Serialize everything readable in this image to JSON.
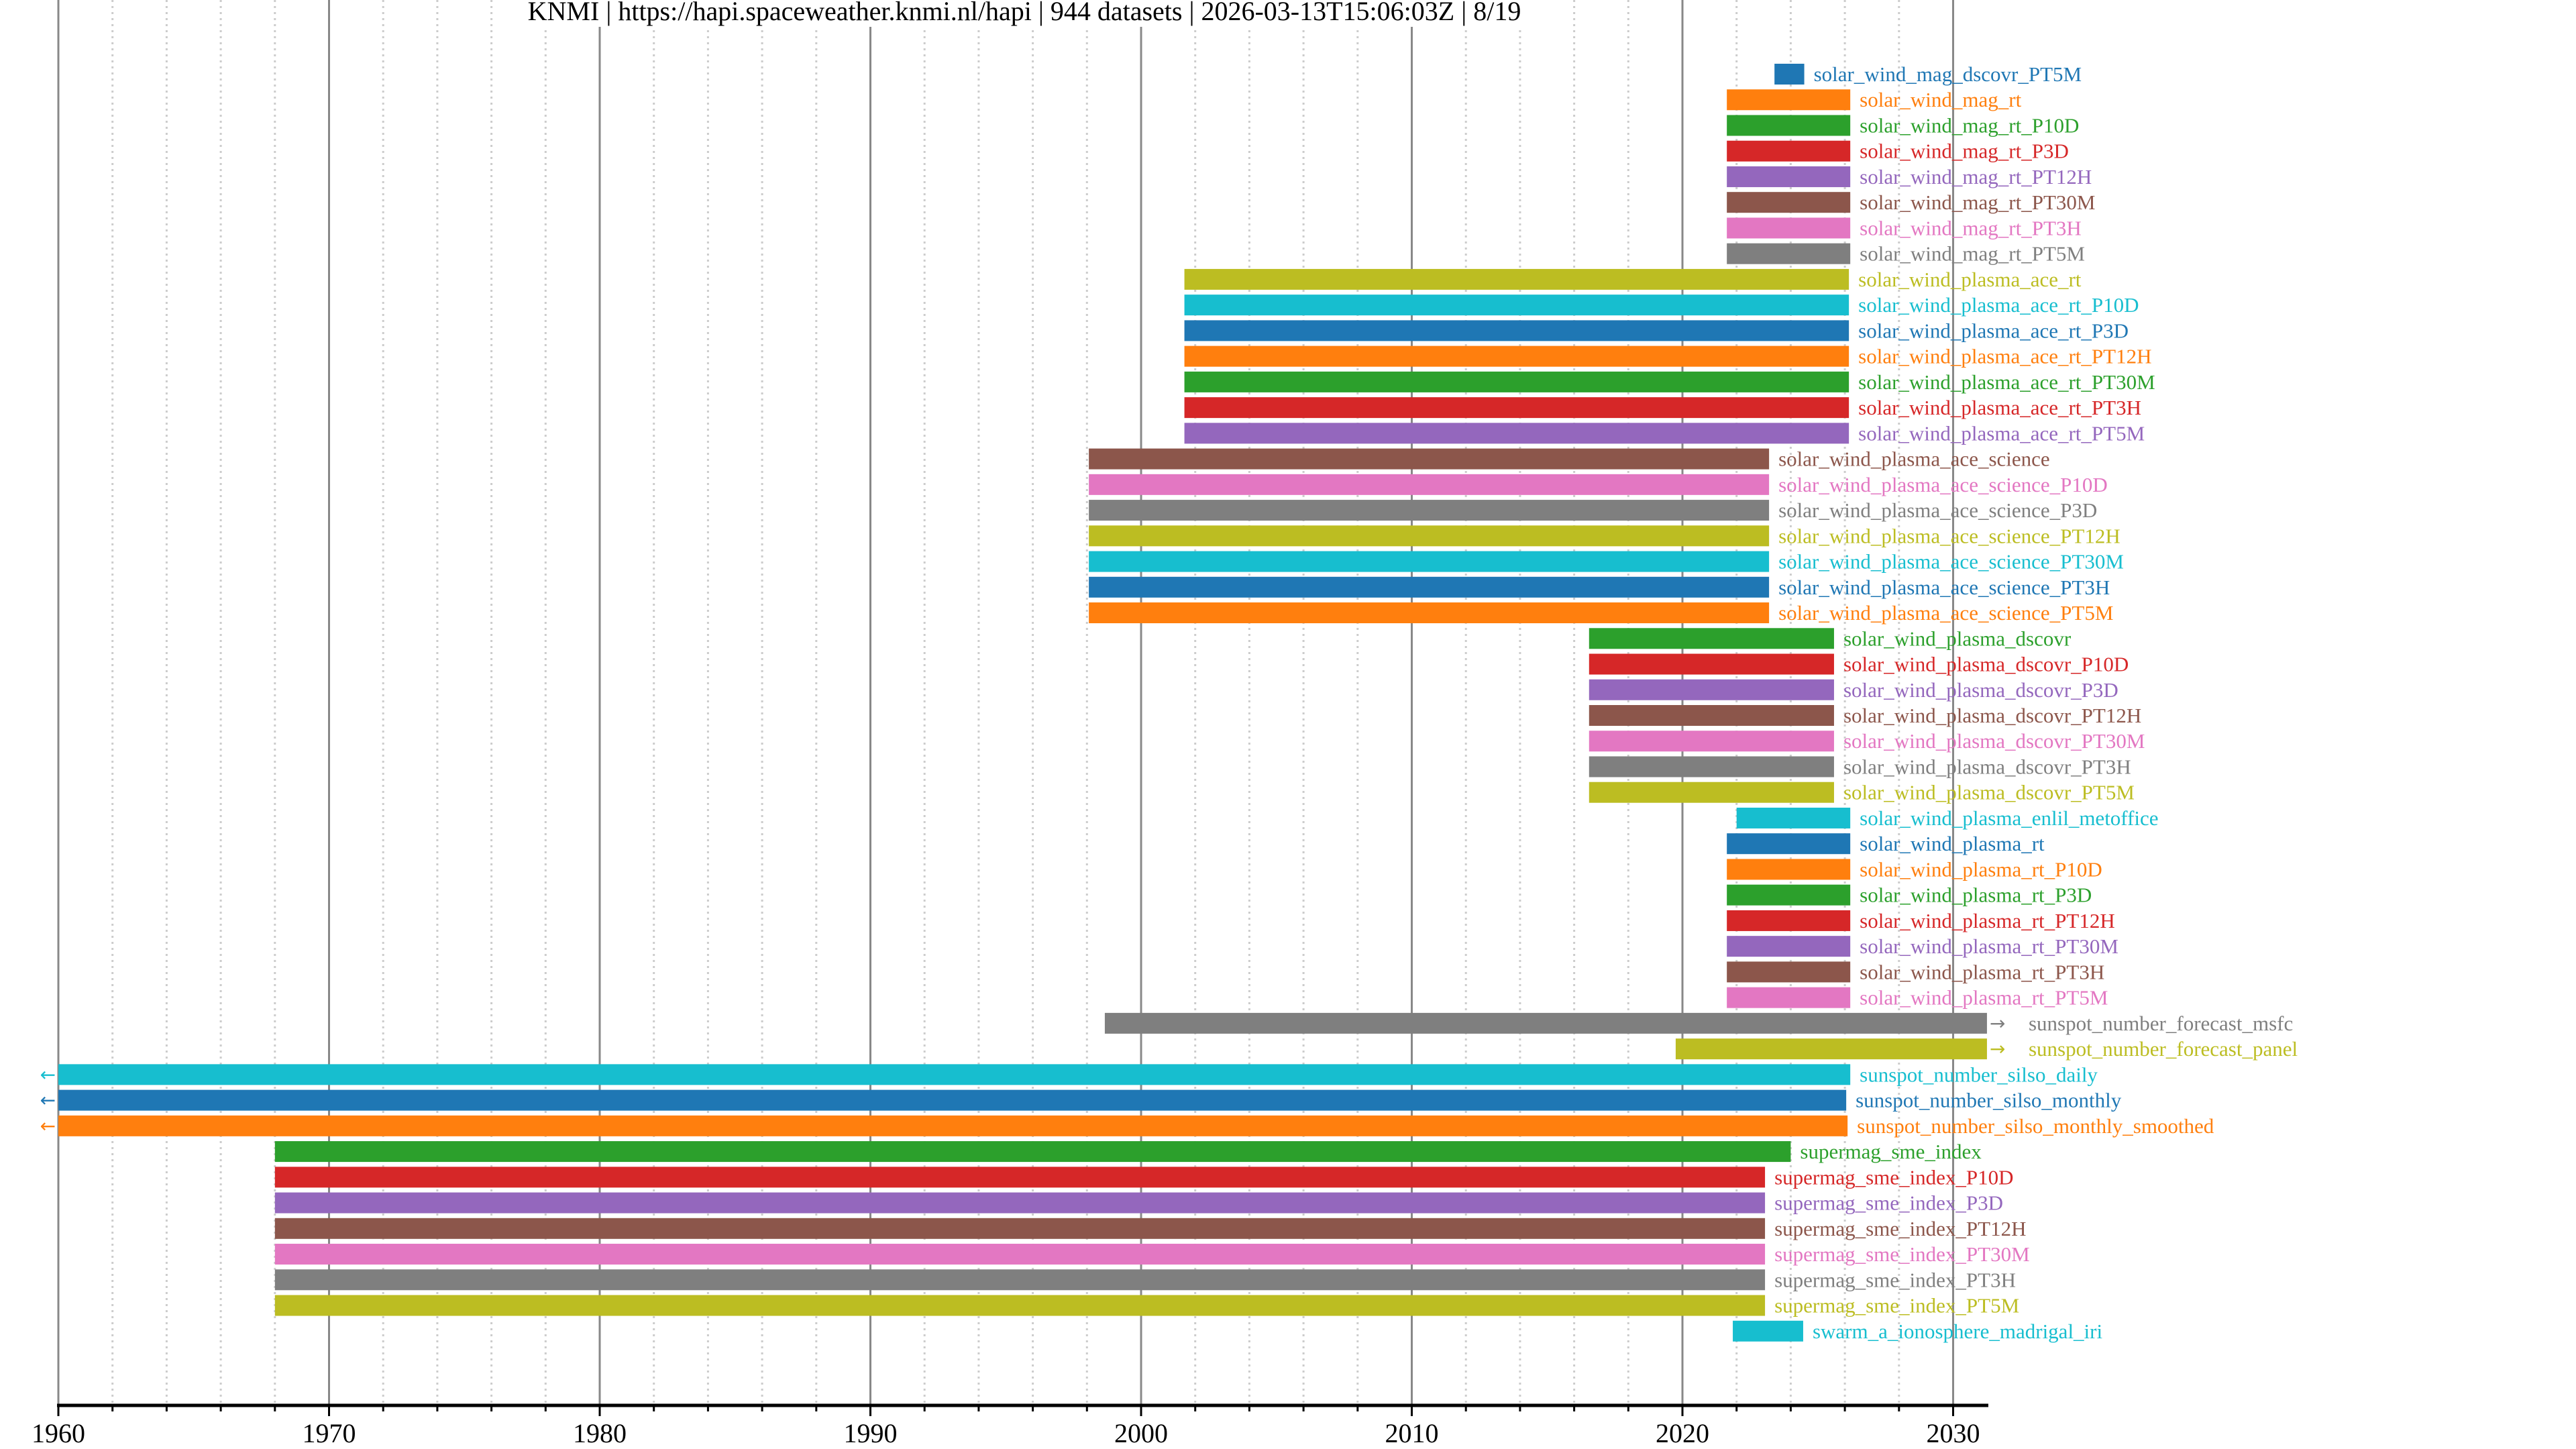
{
  "chart_data": {
    "type": "bar",
    "orientation": "horizontal-timeline",
    "title": "KNMI | https://hapi.spaceweather.knmi.nl/hapi | 944 datasets | 2026-03-13T15:06:03Z | 8/19",
    "xlabel": "",
    "ylabel": "",
    "xlim": [
      1960,
      2031.3
    ],
    "x_ticks": [
      1960,
      1970,
      1980,
      1990,
      2000,
      2010,
      2020,
      2030
    ],
    "x_tick_labels": [
      "1960",
      "1970",
      "1980",
      "1990",
      "2000",
      "2010",
      "2020",
      "2030"
    ],
    "minor_tick_step_years": 2,
    "grid": "major solid every 10 years, minor dotted every 2 years",
    "palette": [
      "#1f77b4",
      "#ff7f0e",
      "#2ca02c",
      "#d62728",
      "#9467bd",
      "#8c564b",
      "#e377c2",
      "#7f7f7f",
      "#bcbd22",
      "#17becf"
    ],
    "series": [
      {
        "name": "solar_wind_mag_dscovr_PT5M",
        "start": 2023.4,
        "end": 2024.5,
        "color": "#1f77b4"
      },
      {
        "name": "solar_wind_mag_rt",
        "start": 2021.64,
        "end": 2026.2,
        "color": "#ff7f0e"
      },
      {
        "name": "solar_wind_mag_rt_P10D",
        "start": 2021.64,
        "end": 2026.2,
        "color": "#2ca02c"
      },
      {
        "name": "solar_wind_mag_rt_P3D",
        "start": 2021.64,
        "end": 2026.2,
        "color": "#d62728"
      },
      {
        "name": "solar_wind_mag_rt_PT12H",
        "start": 2021.64,
        "end": 2026.2,
        "color": "#9467bd"
      },
      {
        "name": "solar_wind_mag_rt_PT30M",
        "start": 2021.64,
        "end": 2026.2,
        "color": "#8c564b"
      },
      {
        "name": "solar_wind_mag_rt_PT3H",
        "start": 2021.64,
        "end": 2026.2,
        "color": "#e377c2"
      },
      {
        "name": "solar_wind_mag_rt_PT5M",
        "start": 2021.64,
        "end": 2026.2,
        "color": "#7f7f7f"
      },
      {
        "name": "solar_wind_plasma_ace_rt",
        "start": 2001.6,
        "end": 2026.15,
        "color": "#bcbd22"
      },
      {
        "name": "solar_wind_plasma_ace_rt_P10D",
        "start": 2001.6,
        "end": 2026.15,
        "color": "#17becf"
      },
      {
        "name": "solar_wind_plasma_ace_rt_P3D",
        "start": 2001.6,
        "end": 2026.15,
        "color": "#1f77b4"
      },
      {
        "name": "solar_wind_plasma_ace_rt_PT12H",
        "start": 2001.6,
        "end": 2026.15,
        "color": "#ff7f0e"
      },
      {
        "name": "solar_wind_plasma_ace_rt_PT30M",
        "start": 2001.6,
        "end": 2026.15,
        "color": "#2ca02c"
      },
      {
        "name": "solar_wind_plasma_ace_rt_PT3H",
        "start": 2001.6,
        "end": 2026.15,
        "color": "#d62728"
      },
      {
        "name": "solar_wind_plasma_ace_rt_PT5M",
        "start": 2001.6,
        "end": 2026.15,
        "color": "#9467bd"
      },
      {
        "name": "solar_wind_plasma_ace_science",
        "start": 1998.07,
        "end": 2023.2,
        "color": "#8c564b"
      },
      {
        "name": "solar_wind_plasma_ace_science_P10D",
        "start": 1998.07,
        "end": 2023.2,
        "color": "#e377c2"
      },
      {
        "name": "solar_wind_plasma_ace_science_P3D",
        "start": 1998.07,
        "end": 2023.2,
        "color": "#7f7f7f"
      },
      {
        "name": "solar_wind_plasma_ace_science_PT12H",
        "start": 1998.07,
        "end": 2023.2,
        "color": "#bcbd22"
      },
      {
        "name": "solar_wind_plasma_ace_science_PT30M",
        "start": 1998.07,
        "end": 2023.2,
        "color": "#17becf"
      },
      {
        "name": "solar_wind_plasma_ace_science_PT3H",
        "start": 1998.07,
        "end": 2023.2,
        "color": "#1f77b4"
      },
      {
        "name": "solar_wind_plasma_ace_science_PT5M",
        "start": 1998.07,
        "end": 2023.2,
        "color": "#ff7f0e"
      },
      {
        "name": "solar_wind_plasma_dscovr",
        "start": 2016.55,
        "end": 2025.6,
        "color": "#2ca02c"
      },
      {
        "name": "solar_wind_plasma_dscovr_P10D",
        "start": 2016.55,
        "end": 2025.6,
        "color": "#d62728"
      },
      {
        "name": "solar_wind_plasma_dscovr_P3D",
        "start": 2016.55,
        "end": 2025.6,
        "color": "#9467bd"
      },
      {
        "name": "solar_wind_plasma_dscovr_PT12H",
        "start": 2016.55,
        "end": 2025.6,
        "color": "#8c564b"
      },
      {
        "name": "solar_wind_plasma_dscovr_PT30M",
        "start": 2016.55,
        "end": 2025.6,
        "color": "#e377c2"
      },
      {
        "name": "solar_wind_plasma_dscovr_PT3H",
        "start": 2016.55,
        "end": 2025.6,
        "color": "#7f7f7f"
      },
      {
        "name": "solar_wind_plasma_dscovr_PT5M",
        "start": 2016.55,
        "end": 2025.6,
        "color": "#bcbd22"
      },
      {
        "name": "solar_wind_plasma_enlil_metoffice",
        "start": 2022.0,
        "end": 2026.2,
        "color": "#17becf"
      },
      {
        "name": "solar_wind_plasma_rt",
        "start": 2021.64,
        "end": 2026.2,
        "color": "#1f77b4"
      },
      {
        "name": "solar_wind_plasma_rt_P10D",
        "start": 2021.64,
        "end": 2026.2,
        "color": "#ff7f0e"
      },
      {
        "name": "solar_wind_plasma_rt_P3D",
        "start": 2021.64,
        "end": 2026.2,
        "color": "#2ca02c"
      },
      {
        "name": "solar_wind_plasma_rt_PT12H",
        "start": 2021.64,
        "end": 2026.2,
        "color": "#d62728"
      },
      {
        "name": "solar_wind_plasma_rt_PT30M",
        "start": 2021.64,
        "end": 2026.2,
        "color": "#9467bd"
      },
      {
        "name": "solar_wind_plasma_rt_PT3H",
        "start": 2021.64,
        "end": 2026.2,
        "color": "#8c564b"
      },
      {
        "name": "solar_wind_plasma_rt_PT5M",
        "start": 2021.64,
        "end": 2026.2,
        "color": "#e377c2"
      },
      {
        "name": "sunspot_number_forecast_msfc",
        "start": 1998.66,
        "end": 2031.25,
        "color": "#7f7f7f",
        "continues_right": true
      },
      {
        "name": "sunspot_number_forecast_panel",
        "start": 2019.75,
        "end": 2031.25,
        "color": "#bcbd22",
        "continues_right": true
      },
      {
        "name": "sunspot_number_silso_daily",
        "start": 1960,
        "end": 2026.2,
        "color": "#17becf",
        "continues_left": true
      },
      {
        "name": "sunspot_number_silso_monthly",
        "start": 1960,
        "end": 2026.05,
        "color": "#1f77b4",
        "continues_left": true
      },
      {
        "name": "sunspot_number_silso_monthly_smoothed",
        "start": 1960,
        "end": 2026.1,
        "color": "#ff7f0e",
        "continues_left": true
      },
      {
        "name": "supermag_sme_index",
        "start": 1968.0,
        "end": 2024.0,
        "color": "#2ca02c"
      },
      {
        "name": "supermag_sme_index_P10D",
        "start": 1968.0,
        "end": 2023.05,
        "color": "#d62728"
      },
      {
        "name": "supermag_sme_index_P3D",
        "start": 1968.0,
        "end": 2023.05,
        "color": "#9467bd"
      },
      {
        "name": "supermag_sme_index_PT12H",
        "start": 1968.0,
        "end": 2023.05,
        "color": "#8c564b"
      },
      {
        "name": "supermag_sme_index_PT30M",
        "start": 1968.0,
        "end": 2023.05,
        "color": "#e377c2"
      },
      {
        "name": "supermag_sme_index_PT3H",
        "start": 1968.0,
        "end": 2023.05,
        "color": "#7f7f7f"
      },
      {
        "name": "supermag_sme_index_PT5M",
        "start": 1968.0,
        "end": 2023.05,
        "color": "#bcbd22"
      },
      {
        "name": "swarm_a_ionosphere_madrigal_iri",
        "start": 2021.86,
        "end": 2024.46,
        "color": "#17becf"
      }
    ],
    "markers": {
      "continues_left": "←",
      "continues_right": "→"
    },
    "grid_colors": {
      "major": "#888888",
      "minor": "#cccccc",
      "axis": "#000000"
    }
  }
}
